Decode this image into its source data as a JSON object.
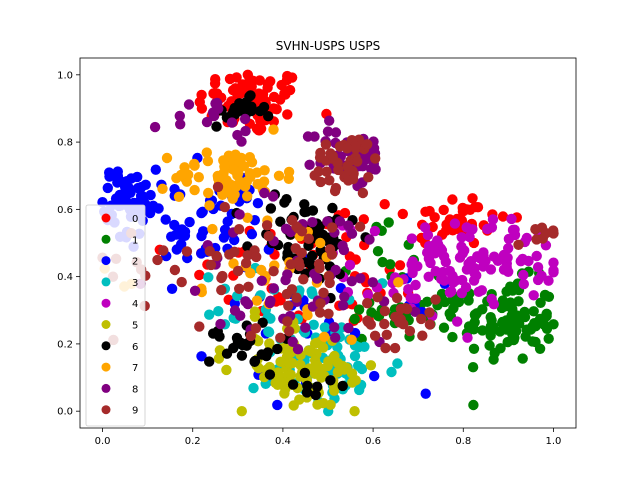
{
  "chart_data": {
    "type": "scatter",
    "title": "SVHN-USPS USPS",
    "xlabel": "",
    "ylabel": "",
    "xlim": [
      -0.05,
      1.05
    ],
    "ylim": [
      -0.05,
      1.05
    ],
    "xticks": [
      "0.0",
      "0.2",
      "0.4",
      "0.6",
      "0.8",
      "1.0"
    ],
    "yticks": [
      "0.0",
      "0.2",
      "0.4",
      "0.6",
      "0.8",
      "1.0"
    ],
    "grid": false,
    "legend_position": "center-left",
    "series": [
      {
        "name": "0",
        "color": "#ff0000",
        "clusters": [
          {
            "cx": 0.33,
            "cy": 0.92,
            "sx": 0.06,
            "sy": 0.05,
            "n": 80
          },
          {
            "cx": 0.78,
            "cy": 0.57,
            "sx": 0.06,
            "sy": 0.04,
            "n": 40
          },
          {
            "cx": 0.45,
            "cy": 0.45,
            "sx": 0.15,
            "sy": 0.1,
            "n": 40
          },
          {
            "cx": 0.55,
            "cy": 0.28,
            "sx": 0.12,
            "sy": 0.05,
            "n": 15
          }
        ]
      },
      {
        "name": "1",
        "color": "#008000",
        "clusters": [
          {
            "cx": 0.9,
            "cy": 0.27,
            "sx": 0.05,
            "sy": 0.06,
            "n": 90
          },
          {
            "cx": 0.72,
            "cy": 0.3,
            "sx": 0.06,
            "sy": 0.05,
            "n": 30
          },
          {
            "cx": 0.62,
            "cy": 0.4,
            "sx": 0.06,
            "sy": 0.08,
            "n": 15
          }
        ]
      },
      {
        "name": "2",
        "color": "#0000ff",
        "clusters": [
          {
            "cx": 0.06,
            "cy": 0.64,
            "sx": 0.03,
            "sy": 0.04,
            "n": 60
          },
          {
            "cx": 0.22,
            "cy": 0.55,
            "sx": 0.08,
            "sy": 0.08,
            "n": 60
          },
          {
            "cx": 0.5,
            "cy": 0.22,
            "sx": 0.12,
            "sy": 0.08,
            "n": 25
          }
        ]
      },
      {
        "name": "3",
        "color": "#00bfbf",
        "clusters": [
          {
            "cx": 0.5,
            "cy": 0.13,
            "sx": 0.08,
            "sy": 0.06,
            "n": 70
          },
          {
            "cx": 0.38,
            "cy": 0.3,
            "sx": 0.08,
            "sy": 0.06,
            "n": 30
          }
        ]
      },
      {
        "name": "4",
        "color": "#bf00bf",
        "clusters": [
          {
            "cx": 0.85,
            "cy": 0.45,
            "sx": 0.08,
            "sy": 0.06,
            "n": 80
          },
          {
            "cx": 0.7,
            "cy": 0.42,
            "sx": 0.08,
            "sy": 0.08,
            "n": 40
          }
        ]
      },
      {
        "name": "5",
        "color": "#bfbf00",
        "clusters": [
          {
            "cx": 0.45,
            "cy": 0.1,
            "sx": 0.08,
            "sy": 0.05,
            "n": 70
          },
          {
            "cx": 0.4,
            "cy": 0.2,
            "sx": 0.06,
            "sy": 0.04,
            "n": 30
          }
        ]
      },
      {
        "name": "6",
        "color": "#000000",
        "clusters": [
          {
            "cx": 0.3,
            "cy": 0.89,
            "sx": 0.03,
            "sy": 0.02,
            "n": 20
          },
          {
            "cx": 0.45,
            "cy": 0.52,
            "sx": 0.06,
            "sy": 0.07,
            "n": 60
          },
          {
            "cx": 0.32,
            "cy": 0.19,
            "sx": 0.04,
            "sy": 0.04,
            "n": 25
          },
          {
            "cx": 0.48,
            "cy": 0.08,
            "sx": 0.03,
            "sy": 0.03,
            "n": 8
          }
        ]
      },
      {
        "name": "7",
        "color": "#ffa500",
        "clusters": [
          {
            "cx": 0.28,
            "cy": 0.7,
            "sx": 0.06,
            "sy": 0.04,
            "n": 70
          },
          {
            "cx": 0.38,
            "cy": 0.4,
            "sx": 0.12,
            "sy": 0.1,
            "n": 30
          }
        ]
      },
      {
        "name": "8",
        "color": "#800080",
        "clusters": [
          {
            "cx": 0.55,
            "cy": 0.76,
            "sx": 0.04,
            "sy": 0.05,
            "n": 40
          },
          {
            "cx": 0.45,
            "cy": 0.4,
            "sx": 0.15,
            "sy": 0.12,
            "n": 60
          },
          {
            "cx": 0.25,
            "cy": 0.85,
            "sx": 0.05,
            "sy": 0.04,
            "n": 15
          }
        ]
      },
      {
        "name": "9",
        "color": "#a52a2a",
        "clusters": [
          {
            "cx": 0.54,
            "cy": 0.74,
            "sx": 0.04,
            "sy": 0.04,
            "n": 40
          },
          {
            "cx": 0.35,
            "cy": 0.45,
            "sx": 0.16,
            "sy": 0.1,
            "n": 70
          },
          {
            "cx": 0.66,
            "cy": 0.27,
            "sx": 0.04,
            "sy": 0.04,
            "n": 25
          },
          {
            "cx": 0.96,
            "cy": 0.52,
            "sx": 0.02,
            "sy": 0.02,
            "n": 8
          }
        ]
      }
    ]
  }
}
